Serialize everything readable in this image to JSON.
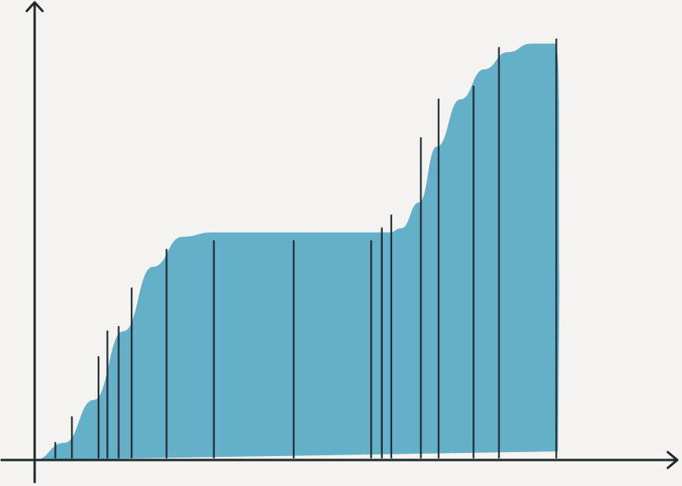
{
  "chart_data": {
    "type": "area",
    "title": "",
    "xlabel": "",
    "ylabel": "",
    "grid": false,
    "colors": {
      "background": "#f5f3ef",
      "area": "#64b0c8",
      "axis": "#1f2a2e",
      "line": "#1f2a2e"
    },
    "xlim": [
      0,
      100
    ],
    "ylim": [
      0,
      100
    ],
    "area_profile": [
      {
        "x": 0,
        "y": 0
      },
      {
        "x": 5,
        "y": 4
      },
      {
        "x": 10,
        "y": 14
      },
      {
        "x": 15,
        "y": 30
      },
      {
        "x": 20,
        "y": 45
      },
      {
        "x": 25,
        "y": 52
      },
      {
        "x": 30,
        "y": 53
      },
      {
        "x": 40,
        "y": 53
      },
      {
        "x": 50,
        "y": 53
      },
      {
        "x": 60,
        "y": 53
      },
      {
        "x": 62,
        "y": 54
      },
      {
        "x": 65,
        "y": 60
      },
      {
        "x": 68,
        "y": 73
      },
      {
        "x": 72,
        "y": 84
      },
      {
        "x": 76,
        "y": 91
      },
      {
        "x": 80,
        "y": 95
      },
      {
        "x": 84,
        "y": 97
      },
      {
        "x": 88,
        "y": 97
      },
      {
        "x": 89,
        "y": 0
      }
    ],
    "bars": [
      {
        "x": 3.5,
        "y": 4
      },
      {
        "x": 6.3,
        "y": 10
      },
      {
        "x": 10.8,
        "y": 24
      },
      {
        "x": 12.3,
        "y": 30
      },
      {
        "x": 14.2,
        "y": 31
      },
      {
        "x": 16.4,
        "y": 40
      },
      {
        "x": 22.3,
        "y": 49
      },
      {
        "x": 30.3,
        "y": 51
      },
      {
        "x": 43.8,
        "y": 51
      },
      {
        "x": 56.9,
        "y": 51
      },
      {
        "x": 58.7,
        "y": 54
      },
      {
        "x": 60.3,
        "y": 57
      },
      {
        "x": 65.3,
        "y": 75
      },
      {
        "x": 68.3,
        "y": 84
      },
      {
        "x": 74.2,
        "y": 87
      },
      {
        "x": 78.5,
        "y": 96
      },
      {
        "x": 88.2,
        "y": 98
      }
    ]
  }
}
